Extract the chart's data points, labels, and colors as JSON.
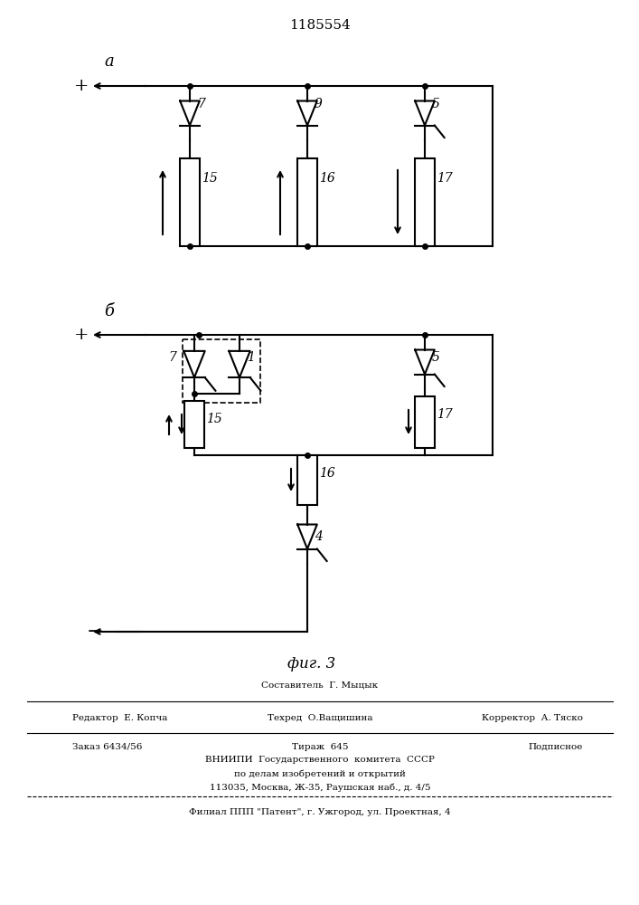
{
  "title": "1185554",
  "fig_width": 7.07,
  "fig_height": 10.0,
  "bg_color": "#ffffff",
  "line_color": "#000000",
  "label_a": "а",
  "label_b": "б",
  "fig_label": "фиг. 3",
  "footer_sestavitel_top": "Составитель  Г. Мыцык",
  "footer_tehred": "Техред  О.Ващишина",
  "footer_redaktor": "Редактор  Е. Копча",
  "footer_korrektor": "Корректор  А. Тяско",
  "footer_zakaz": "Заказ 6434/56",
  "footer_tirazh": "Тираж  645",
  "footer_podpisnoe": "Подписное",
  "footer_vniipи": "ВНИИПИ  Государственного  комитета  СССР",
  "footer_dela": "по делам изобретений и открытий",
  "footer_addr": "113035, Москва, Ж-35, Раушская наб., д. 4/5",
  "footer_filial": "Филиал ППП \"Патент\", г. Ужгород, ул. Проектная, 4"
}
